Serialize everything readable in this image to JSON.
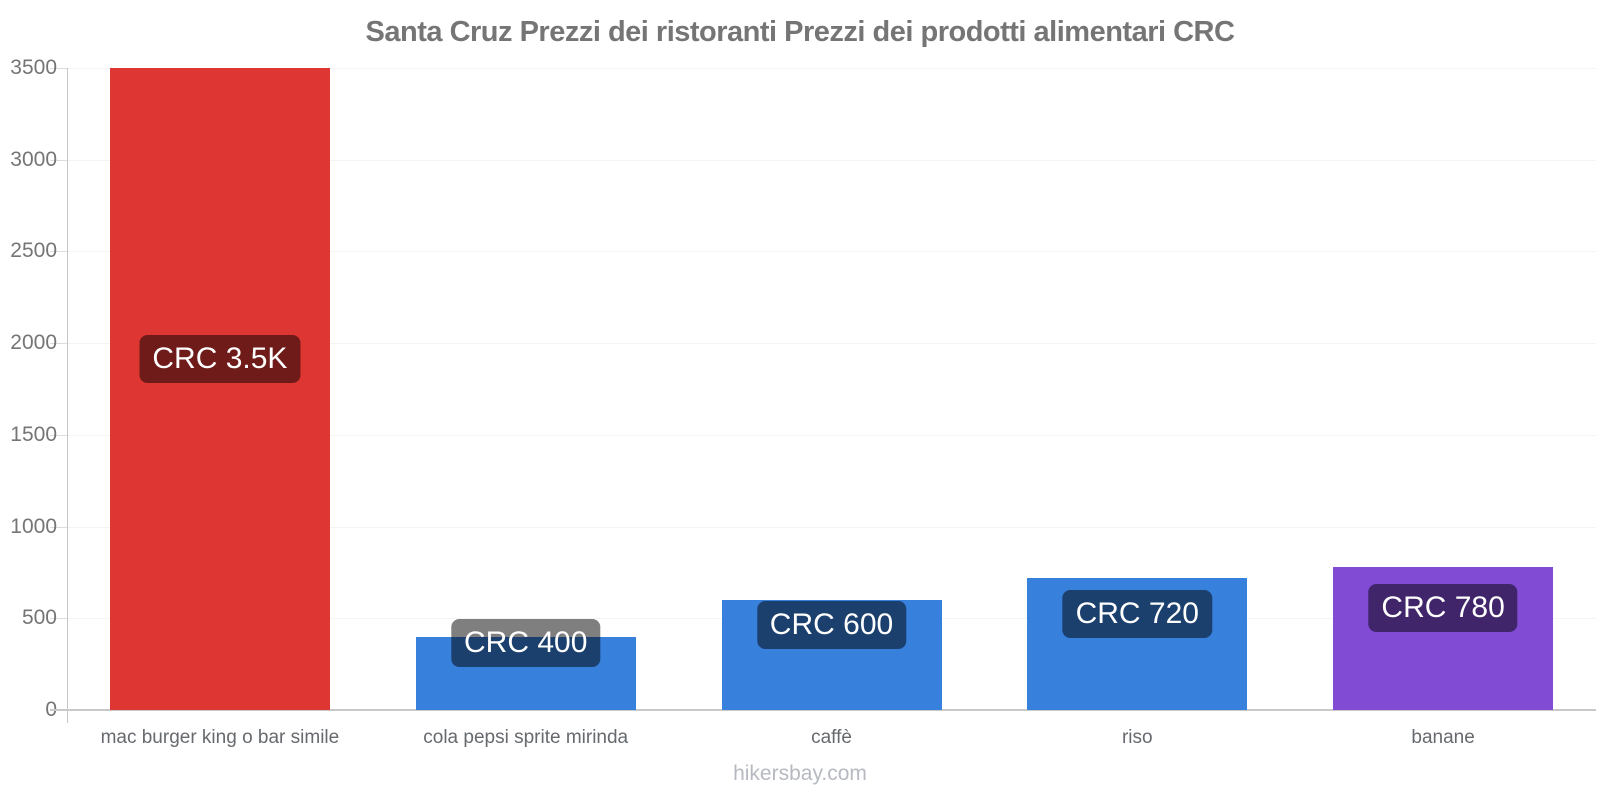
{
  "chart_data": {
    "type": "bar",
    "title": "Santa Cruz Prezzi dei ristoranti Prezzi dei prodotti alimentari CRC",
    "currency": "CRC",
    "categories": [
      "mac burger king o bar simile",
      "cola pepsi sprite mirinda",
      "caffè",
      "riso",
      "banane"
    ],
    "values": [
      3500,
      400,
      600,
      720,
      780
    ],
    "value_labels": [
      "CRC 3.5K",
      "CRC 400",
      "CRC 600",
      "CRC 720",
      "CRC 780"
    ],
    "bar_colors": [
      "#de3633",
      "#3781dd",
      "#3781dd",
      "#3781dd",
      "#814bd4"
    ],
    "xlabel": "",
    "ylabel": "",
    "ylim": [
      0,
      3500
    ],
    "yticks": [
      0,
      500,
      1000,
      1500,
      2000,
      2500,
      3000,
      3500
    ],
    "grid": "horizontal-faint",
    "legend": "none",
    "footer": "hikersbay.com",
    "palette": {
      "red": "#de3633",
      "blue": "#3781dd",
      "purple": "#814bd4",
      "value_label_bg": "rgba(0,0,0,0.5)",
      "value_label_text": "#ffffff",
      "title_text": "#757575",
      "axis_line": "#c6c6c6",
      "tick_text": "#757575",
      "category_text": "#666a6e",
      "gridline": "#f4f4f4",
      "footer_text": "#b6bac0"
    }
  }
}
